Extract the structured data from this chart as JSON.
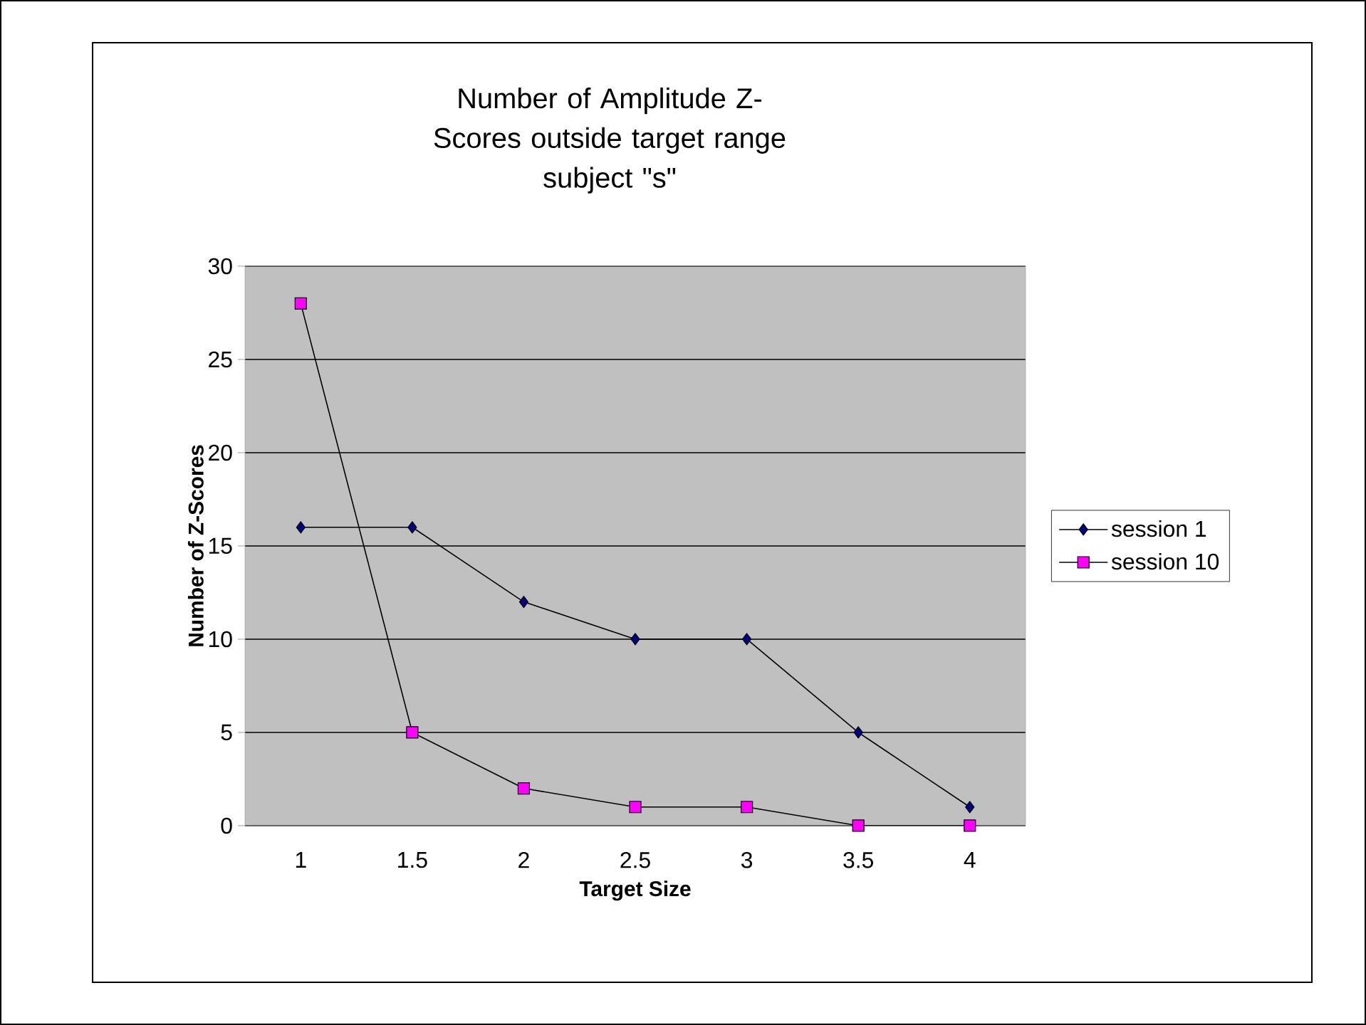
{
  "chart_data": {
    "type": "line",
    "title": "Number of Amplitude Z-Scores outside target range",
    "subtitle": "subject \"s\"",
    "xlabel": "Target Size",
    "ylabel": "Number of Z-Scores",
    "categories": [
      "1",
      "1.5",
      "2",
      "2.5",
      "3",
      "3.5",
      "4"
    ],
    "series": [
      {
        "name": "session 1",
        "color": "#000080",
        "marker": "diamond",
        "values": [
          16,
          16,
          12,
          10,
          10,
          5,
          1
        ]
      },
      {
        "name": "session 10",
        "color": "#ff00ff",
        "marker": "square",
        "values": [
          28,
          5,
          2,
          1,
          1,
          0,
          0
        ]
      }
    ],
    "ylim": [
      0,
      30
    ],
    "yticks": [
      0,
      5,
      10,
      15,
      20,
      25,
      30
    ],
    "grid": "y",
    "legend": "right",
    "line_style": "solid"
  }
}
